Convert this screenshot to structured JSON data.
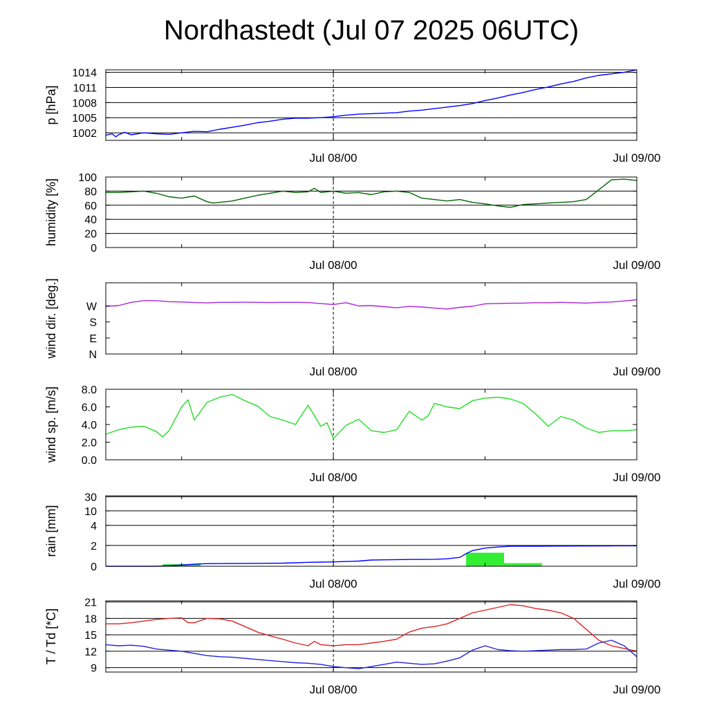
{
  "title": "Nordhastedt (Jul 07 2025 06UTC)",
  "chart_data": [
    {
      "type": "line",
      "ylabel": "p [hPa]",
      "ylim": [
        1000.5,
        1014.5
      ],
      "yticks": [
        1002,
        1005,
        1008,
        1011,
        1014
      ],
      "ytick_labels": [
        "1002",
        "1005",
        "1008",
        "1011",
        "1014"
      ],
      "grid": true,
      "xlabels": [
        "Jul 08/00",
        "Jul 09/00"
      ],
      "series": [
        {
          "color": "#0000ff",
          "x": [
            0,
            0.5,
            0.8,
            1.0,
            1.5,
            2.0,
            3,
            4,
            5,
            6,
            7,
            8,
            9,
            10,
            11,
            12,
            13,
            14,
            15,
            16,
            17,
            18,
            19,
            20,
            21,
            22,
            23,
            24,
            25,
            26,
            27,
            28,
            29,
            30,
            31,
            32,
            33,
            34,
            35,
            36,
            37,
            38,
            39,
            40,
            41,
            42
          ],
          "y": [
            1001.5,
            1001.8,
            1001.2,
            1001.6,
            1002.1,
            1001.6,
            1002.0,
            1001.8,
            1001.7,
            1002.0,
            1002.3,
            1002.2,
            1002.7,
            1003.1,
            1003.5,
            1004.0,
            1004.3,
            1004.7,
            1004.9,
            1004.9,
            1005.0,
            1005.2,
            1005.5,
            1005.7,
            1005.8,
            1005.9,
            1006.0,
            1006.3,
            1006.5,
            1006.8,
            1007.1,
            1007.4,
            1007.8,
            1008.4,
            1008.9,
            1009.5,
            1010.0,
            1010.6,
            1011.1,
            1011.7,
            1012.2,
            1012.9,
            1013.4,
            1013.7,
            1014.0,
            1014.5
          ]
        }
      ]
    },
    {
      "type": "line",
      "ylabel": "humidity [%]",
      "ylim": [
        0,
        100
      ],
      "yticks": [
        0,
        20,
        40,
        60,
        80,
        100
      ],
      "ytick_labels": [
        "0",
        "20",
        "40",
        "60",
        "80",
        "100"
      ],
      "grid": true,
      "xlabels": [
        "Jul 08/00",
        "Jul 09/00"
      ],
      "series": [
        {
          "color": "#006400",
          "x": [
            0,
            1,
            2,
            3,
            4,
            5,
            6,
            7,
            8,
            8.5,
            9,
            10,
            11,
            12,
            13,
            14,
            15,
            16,
            16.5,
            17,
            18,
            19,
            20,
            21,
            22,
            23,
            24,
            25,
            26,
            27,
            28,
            29,
            30,
            31,
            32,
            33,
            34,
            35,
            36,
            37,
            38,
            39,
            40,
            41,
            42
          ],
          "y": [
            78,
            78,
            79,
            80,
            77,
            72,
            70,
            73,
            65,
            63,
            64,
            66,
            70,
            74,
            77,
            80,
            78,
            79,
            84,
            78,
            80,
            77,
            78,
            75,
            79,
            80,
            78,
            70,
            68,
            66,
            68,
            64,
            62,
            59,
            57,
            61,
            62,
            63,
            64,
            65,
            68,
            82,
            96,
            97,
            95
          ]
        }
      ]
    },
    {
      "type": "line",
      "ylabel": "wind dir. [deg.]",
      "ylim": [
        0,
        400
      ],
      "yticks": [
        0,
        90,
        180,
        270
      ],
      "ytick_labels": [
        "N",
        "E",
        "S",
        "W"
      ],
      "grid": false,
      "xlabels": [
        "Jul 08/00",
        "Jul 09/00"
      ],
      "series": [
        {
          "color": "#aa22dd",
          "x": [
            0,
            1,
            2,
            3,
            4,
            5,
            6,
            7,
            8,
            9,
            10,
            11,
            12,
            13,
            14,
            15,
            16,
            17,
            18,
            19,
            20,
            21,
            22,
            23,
            24,
            25,
            26,
            27,
            28,
            29,
            30,
            31,
            32,
            33,
            34,
            35,
            36,
            37,
            38,
            39,
            40,
            41,
            42
          ],
          "y": [
            268,
            272,
            290,
            300,
            300,
            294,
            292,
            289,
            287,
            290,
            290,
            291,
            290,
            289,
            290,
            290,
            289,
            283,
            278,
            288,
            270,
            272,
            266,
            260,
            267,
            264,
            258,
            253,
            262,
            268,
            282,
            284,
            285,
            286,
            288,
            288,
            290,
            288,
            286,
            290,
            292,
            298,
            305
          ]
        }
      ]
    },
    {
      "type": "line",
      "ylabel": "wind sp. [m/s]",
      "ylim": [
        0,
        8
      ],
      "yticks": [
        0,
        2,
        4,
        6,
        8
      ],
      "ytick_labels": [
        "0.0",
        "2.0",
        "4.0",
        "6.0",
        "8.0"
      ],
      "grid": false,
      "xlabels": [
        "Jul 08/00",
        "Jul 09/00"
      ],
      "series": [
        {
          "color": "#22dd22",
          "x": [
            0,
            1,
            2,
            3,
            4,
            4.5,
            5,
            6,
            6.5,
            7,
            8,
            9,
            10,
            11,
            12,
            13,
            14,
            15,
            16,
            17,
            17.5,
            18,
            19,
            20,
            21,
            22,
            23,
            24,
            25,
            25.5,
            26,
            27,
            28,
            29,
            30,
            31,
            32,
            33,
            34,
            35,
            36,
            37,
            38,
            39,
            40,
            41,
            42
          ],
          "y": [
            2.9,
            3.4,
            3.7,
            3.8,
            3.2,
            2.6,
            3.3,
            6.0,
            6.8,
            4.5,
            6.5,
            7.1,
            7.4,
            6.7,
            6.1,
            4.9,
            4.5,
            4.0,
            6.2,
            3.8,
            4.2,
            2.4,
            3.9,
            4.6,
            3.3,
            3.1,
            3.4,
            5.5,
            4.5,
            5.0,
            6.4,
            6.0,
            5.8,
            6.7,
            7.0,
            7.1,
            6.9,
            6.4,
            5.2,
            3.8,
            4.9,
            4.5,
            3.6,
            3.1,
            3.3,
            3.3,
            3.4
          ]
        }
      ]
    },
    {
      "type": "bar",
      "ylabel": "rain [mm]",
      "yticks": [
        0,
        2,
        4,
        10,
        30
      ],
      "ytick_labels": [
        "0",
        "2",
        "4",
        "10",
        "30"
      ],
      "grid": true,
      "xlabels": [
        "Jul 08/00",
        "Jul 09/00"
      ],
      "bars": [
        {
          "x0": 4.5,
          "x1": 7.5,
          "value": 0.2
        },
        {
          "x0": 28.5,
          "x1": 31.5,
          "value": 1.3
        },
        {
          "x0": 31.5,
          "x1": 34.5,
          "value": 0.3
        }
      ],
      "series": [
        {
          "name_hidden": "",
          "color": "#0000ff",
          "x": [
            0,
            4,
            5,
            6,
            7,
            8,
            10,
            12,
            14,
            16,
            17,
            18,
            20,
            21,
            22,
            24,
            26,
            27,
            28,
            28.5,
            29,
            30,
            31,
            32,
            34,
            36,
            38,
            40,
            42
          ],
          "y": [
            0,
            0,
            0.05,
            0.12,
            0.2,
            0.25,
            0.27,
            0.28,
            0.3,
            0.38,
            0.4,
            0.42,
            0.5,
            0.6,
            0.62,
            0.65,
            0.67,
            0.72,
            0.85,
            1.2,
            1.5,
            1.75,
            1.85,
            1.92,
            1.93,
            1.94,
            1.95,
            1.96,
            1.97
          ]
        }
      ]
    },
    {
      "type": "line",
      "ylabel": "T / Td [*C]",
      "ylim": [
        8.2,
        21.2
      ],
      "yticks": [
        9,
        12,
        15,
        18,
        21
      ],
      "ytick_labels": [
        "9",
        "12",
        "15",
        "18",
        "21"
      ],
      "grid": true,
      "xlabels": [
        "Jul 08/00",
        "Jul 09/00"
      ],
      "series": [
        {
          "color": "#dd2222",
          "x": [
            0,
            1,
            2,
            3,
            4,
            5,
            6,
            6.5,
            7,
            8,
            9,
            10,
            11,
            12,
            13,
            14,
            15,
            16,
            16.5,
            17,
            18,
            19,
            20,
            21,
            22,
            23,
            24,
            25,
            26,
            27,
            28,
            29,
            30,
            31,
            32,
            33,
            34,
            35,
            36,
            37,
            38,
            39,
            40,
            41,
            42
          ],
          "y": [
            17.0,
            17.0,
            17.2,
            17.5,
            17.8,
            18.0,
            18.1,
            17.2,
            17.2,
            18.0,
            17.9,
            17.5,
            16.5,
            15.5,
            14.8,
            14.2,
            13.5,
            13.0,
            13.8,
            13.2,
            13.0,
            13.2,
            13.2,
            13.5,
            13.8,
            14.2,
            15.5,
            16.2,
            16.5,
            17.0,
            18.0,
            19.0,
            19.5,
            20.0,
            20.5,
            20.3,
            19.8,
            19.5,
            19.0,
            18.0,
            16.0,
            14.0,
            13.0,
            12.5,
            12.0
          ]
        },
        {
          "color": "#2222dd",
          "x": [
            0,
            1,
            2,
            3,
            4,
            5,
            6,
            7,
            8,
            9,
            10,
            11,
            12,
            13,
            14,
            15,
            16,
            17,
            18,
            19,
            20,
            21,
            22,
            23,
            24,
            25,
            26,
            27,
            28,
            29,
            30,
            31,
            32,
            33,
            34,
            35,
            36,
            37,
            38,
            39,
            40,
            41,
            42
          ],
          "y": [
            13.2,
            13.0,
            13.1,
            12.9,
            12.4,
            12.2,
            12.0,
            11.6,
            11.2,
            11.0,
            10.9,
            10.7,
            10.5,
            10.3,
            10.1,
            9.9,
            9.8,
            9.6,
            9.2,
            9.0,
            8.8,
            9.2,
            9.6,
            10.0,
            9.8,
            9.6,
            9.7,
            10.2,
            10.8,
            12.2,
            13.0,
            12.3,
            12.1,
            12.0,
            12.1,
            12.2,
            12.3,
            12.3,
            12.4,
            13.5,
            14.0,
            13.0,
            11.0
          ]
        }
      ]
    }
  ]
}
